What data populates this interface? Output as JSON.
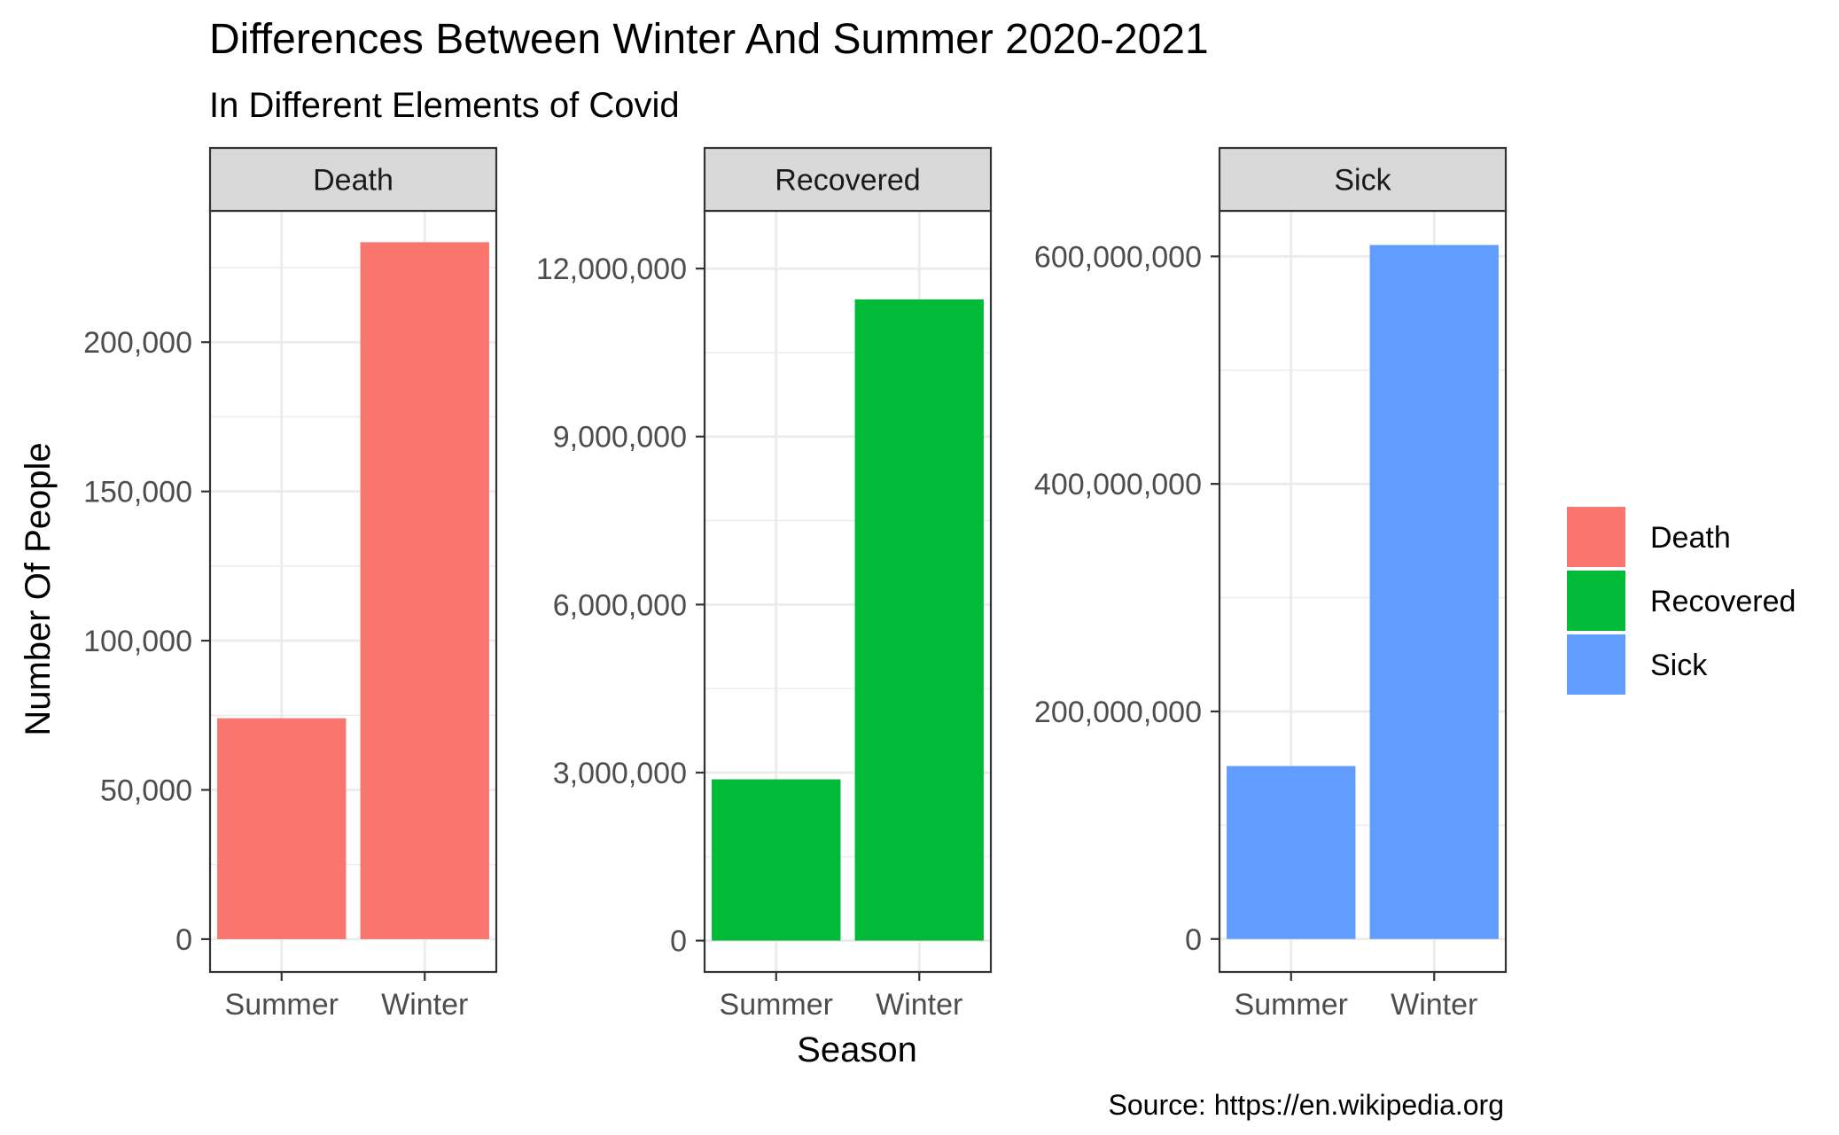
{
  "chart_data": {
    "type": "bar",
    "title": "Differences Between Winter And Summer 2020-2021",
    "subtitle": "In Different Elements of Covid",
    "xlabel": "Season",
    "ylabel": "Number Of People",
    "caption": "Source: https://en.wikipedia.org",
    "categories": [
      "Summer",
      "Winter"
    ],
    "grid": true,
    "legend_placement": "right",
    "legend_entries": [
      "Death",
      "Recovered",
      "Sick"
    ],
    "facets": [
      {
        "name": "Death",
        "color": "#F8766D",
        "values": [
          74000,
          233500
        ],
        "ylim": [
          -11000,
          244000
        ],
        "ticks": [
          0,
          50000,
          100000,
          150000,
          200000
        ],
        "tick_labels": [
          "0",
          "50,000",
          "100,000",
          "150,000",
          "200,000"
        ]
      },
      {
        "name": "Recovered",
        "color": "#00BA38",
        "values": [
          2880000,
          11450000
        ],
        "ylim": [
          -560000,
          13030000
        ],
        "ticks": [
          0,
          3000000,
          6000000,
          9000000,
          12000000
        ],
        "tick_labels": [
          "0",
          "3,000,000",
          "6,000,000",
          "9,000,000",
          "12,000,000"
        ]
      },
      {
        "name": "Sick",
        "color": "#619CFF",
        "values": [
          152000000,
          610000000
        ],
        "ylim": [
          -29000000,
          640000000
        ],
        "ticks": [
          0,
          200000000,
          400000000,
          600000000
        ],
        "tick_labels": [
          "0",
          "200,000,000",
          "400,000,000",
          "600,000,000"
        ]
      }
    ]
  }
}
